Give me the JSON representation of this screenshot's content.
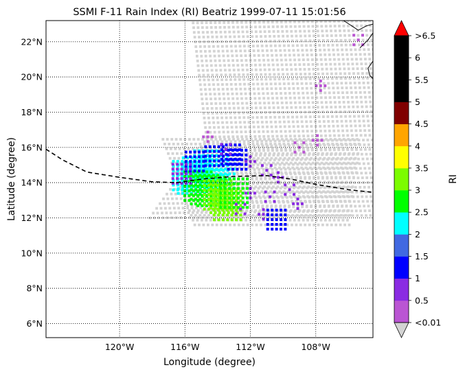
{
  "chart_data": {
    "type": "heatmap",
    "title": "SSMI F-11 Rain Index (RI) Beatriz 1999-07-11 15:01:56",
    "xlabel": "Longitude (degree)",
    "ylabel": "Latitude (degree)",
    "xlim_deg_east": [
      -124.5,
      -104.5
    ],
    "ylim_deg_north": [
      5.2,
      23.2
    ],
    "x_ticks": [
      {
        "value": -120,
        "label": "120°W"
      },
      {
        "value": -116,
        "label": "116°W"
      },
      {
        "value": -112,
        "label": "112°W"
      },
      {
        "value": -108,
        "label": "108°W"
      }
    ],
    "y_ticks": [
      {
        "value": 6,
        "label": "6°N"
      },
      {
        "value": 8,
        "label": "8°N"
      },
      {
        "value": 10,
        "label": "10°N"
      },
      {
        "value": 12,
        "label": "12°N"
      },
      {
        "value": 14,
        "label": "14°N"
      },
      {
        "value": 16,
        "label": "16°N"
      },
      {
        "value": 18,
        "label": "18°N"
      },
      {
        "value": 20,
        "label": "20°N"
      },
      {
        "value": 22,
        "label": "22°N"
      }
    ],
    "grid": "dotted",
    "colorbar": {
      "label": "RI",
      "under_label": "<0.01",
      "under_color": "#d3d3d3",
      "over_label": ">6.5",
      "over_color": "#ff0000",
      "bins": [
        {
          "upper": "0.5",
          "color": "#ba55d3"
        },
        {
          "upper": "1",
          "color": "#8a2be2"
        },
        {
          "upper": "1.5",
          "color": "#0000ff"
        },
        {
          "upper": "2",
          "color": "#4169e1"
        },
        {
          "upper": "2.5",
          "color": "#00ffff"
        },
        {
          "upper": "3",
          "color": "#00ff00"
        },
        {
          "upper": "3.5",
          "color": "#7cfc00"
        },
        {
          "upper": "4",
          "color": "#ffff00"
        },
        {
          "upper": "4.5",
          "color": "#ffa500"
        },
        {
          "upper": "5",
          "color": "#800000"
        },
        {
          "upper": "5.5",
          "color": "#000000"
        },
        {
          "upper": "6",
          "color": "#000000"
        },
        {
          "upper": "6.5",
          "color": "#000000"
        }
      ]
    },
    "storm_track_lonlat": [
      [
        -124.5,
        15.9
      ],
      [
        -123.5,
        15.3
      ],
      [
        -122.0,
        14.6
      ],
      [
        -120.0,
        14.3
      ],
      [
        -118.0,
        14.05
      ],
      [
        -116.5,
        14.0
      ],
      [
        -115.0,
        14.2
      ],
      [
        -113.0,
        14.35
      ],
      [
        -111.0,
        14.4
      ],
      [
        -109.5,
        14.2
      ],
      [
        -108.0,
        13.9
      ],
      [
        -106.0,
        13.6
      ],
      [
        -104.5,
        13.45
      ]
    ],
    "coastline_lonlat": [
      [
        -106.3,
        23.2
      ],
      [
        -105.8,
        22.9
      ],
      [
        -105.4,
        22.65
      ],
      [
        -104.9,
        22.9
      ],
      [
        -104.5,
        23.0
      ]
    ],
    "coastline2_lonlat": [
      [
        -104.5,
        22.5
      ],
      [
        -104.8,
        22.1
      ],
      [
        -105.3,
        21.65
      ]
    ],
    "coastline3_lonlat": [
      [
        -104.5,
        20.9
      ],
      [
        -104.8,
        20.5
      ],
      [
        -104.7,
        20.1
      ],
      [
        -104.5,
        19.9
      ]
    ],
    "rain_points": [
      {
        "lon": -114.6,
        "lat": 15.0,
        "ri": 2.2
      },
      {
        "lon": -114.2,
        "lat": 14.7,
        "ri": 2.3
      },
      {
        "lon": -113.8,
        "lat": 14.5,
        "ri": 2.1
      },
      {
        "lon": -115.3,
        "lat": 14.6,
        "ri": 2.2
      },
      {
        "lon": -115.6,
        "lat": 14.2,
        "ri": 2.4
      },
      {
        "lon": -115.9,
        "lat": 14.4,
        "ri": 2.4
      },
      {
        "lon": -115.2,
        "lat": 13.8,
        "ri": 2.6
      },
      {
        "lon": -114.8,
        "lat": 13.6,
        "ri": 2.8
      },
      {
        "lon": -114.4,
        "lat": 13.5,
        "ri": 3.0
      },
      {
        "lon": -114.0,
        "lat": 13.3,
        "ri": 3.2
      },
      {
        "lon": -113.6,
        "lat": 13.1,
        "ri": 3.3
      },
      {
        "lon": -113.4,
        "lat": 12.7,
        "ri": 3.1
      },
      {
        "lon": -113.0,
        "lat": 13.4,
        "ri": 2.7
      },
      {
        "lon": -114.2,
        "lat": 15.5,
        "ri": 1.4
      },
      {
        "lon": -113.2,
        "lat": 15.6,
        "ri": 1.3
      },
      {
        "lon": -112.8,
        "lat": 15.3,
        "ri": 1.2
      },
      {
        "lon": -115.4,
        "lat": 15.2,
        "ri": 1.2
      },
      {
        "lon": -116.2,
        "lat": 14.5,
        "ri": 1.0
      },
      {
        "lon": -113.5,
        "lat": 15.9,
        "ri": 0.7
      },
      {
        "lon": -112.0,
        "lat": 15.2,
        "ri": 0.7
      },
      {
        "lon": -111.0,
        "lat": 14.7,
        "ri": 0.7
      },
      {
        "lon": -110.3,
        "lat": 14.3,
        "ri": 0.6
      },
      {
        "lon": -109.6,
        "lat": 13.6,
        "ri": 0.7
      },
      {
        "lon": -109.1,
        "lat": 12.8,
        "ri": 0.6
      },
      {
        "lon": -110.8,
        "lat": 13.2,
        "ri": 0.7
      },
      {
        "lon": -112.0,
        "lat": 13.4,
        "ri": 0.6
      },
      {
        "lon": -112.6,
        "lat": 12.5,
        "ri": 0.7
      },
      {
        "lon": -111.2,
        "lat": 12.2,
        "ri": 0.7
      },
      {
        "lon": -110.4,
        "lat": 11.9,
        "ri": 1.2
      },
      {
        "lon": -114.6,
        "lat": 16.6,
        "ri": 0.3
      },
      {
        "lon": -109.0,
        "lat": 16.0,
        "ri": 0.3
      },
      {
        "lon": -107.7,
        "lat": 19.5,
        "ri": 0.3
      },
      {
        "lon": -105.4,
        "lat": 22.1,
        "ri": 0.3
      },
      {
        "lon": -107.9,
        "lat": 16.4,
        "ri": 0.3
      }
    ]
  }
}
